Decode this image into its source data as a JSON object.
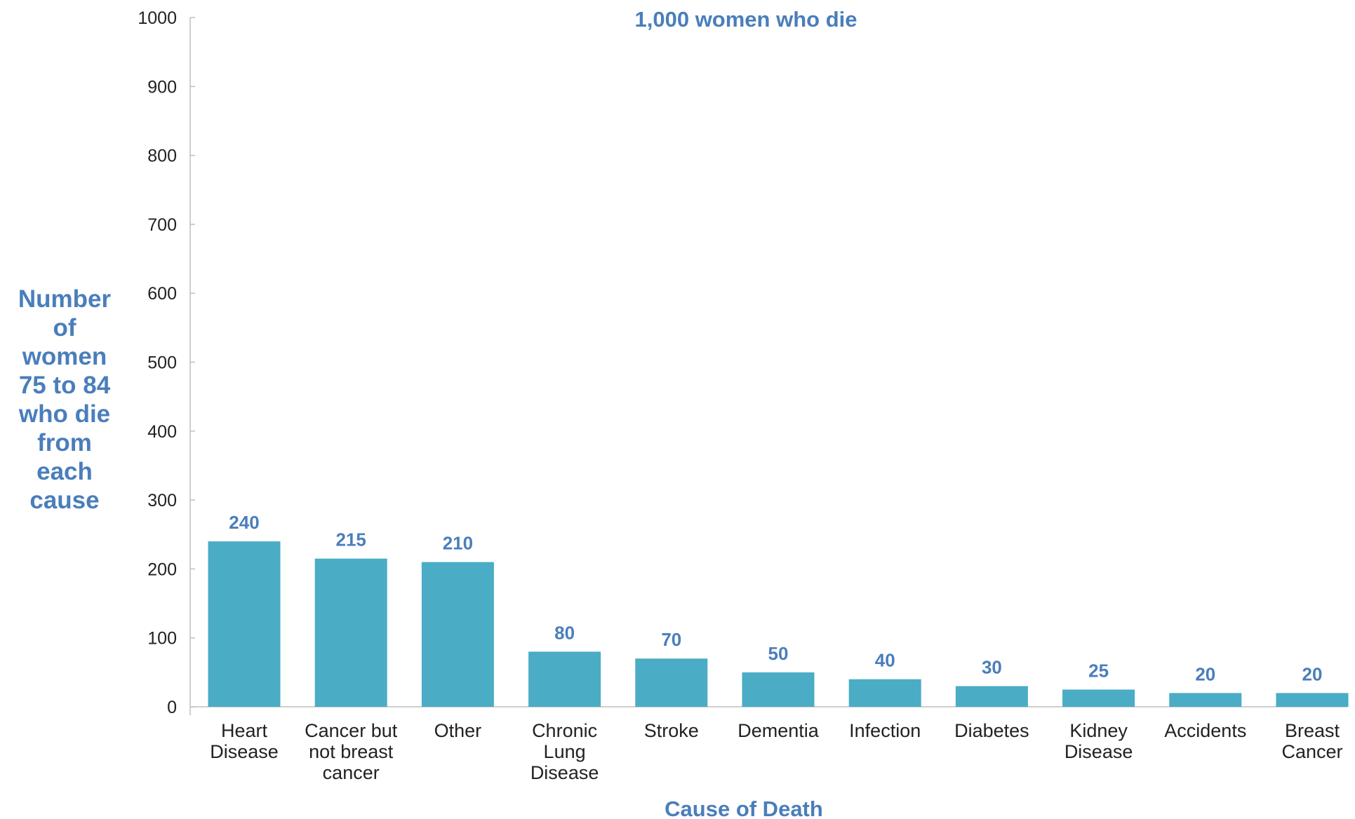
{
  "colors": {
    "bar": "#4aacc5",
    "accent_text": "#4a7ebb",
    "axis": "#bfbfbf",
    "tick_text": "#222222"
  },
  "chart_data": {
    "type": "bar",
    "title": "1,000 women who die",
    "xlabel": "Cause of Death",
    "ylabel": "Number of women 75 to 84 who die from each cause",
    "ylabel_lines": [
      "Number",
      "of",
      "women",
      "75 to 84",
      "who die",
      "from",
      "each",
      "cause"
    ],
    "categories": [
      "Heart Disease",
      "Cancer but not breast cancer",
      "Other",
      "Chronic Lung Disease",
      "Stroke",
      "Dementia",
      "Infection",
      "Diabetes",
      "Kidney Disease",
      "Accidents",
      "Breast Cancer"
    ],
    "category_lines": [
      [
        "Heart",
        "Disease"
      ],
      [
        "Cancer but",
        "not breast",
        "cancer"
      ],
      [
        "Other"
      ],
      [
        "Chronic",
        "Lung",
        "Disease"
      ],
      [
        "Stroke"
      ],
      [
        "Dementia"
      ],
      [
        "Infection"
      ],
      [
        "Diabetes"
      ],
      [
        "Kidney",
        "Disease"
      ],
      [
        "Accidents"
      ],
      [
        "Breast",
        "Cancer"
      ]
    ],
    "values": [
      240,
      215,
      210,
      80,
      70,
      50,
      40,
      30,
      25,
      20,
      20
    ],
    "ylim": [
      0,
      1000
    ],
    "yticks": [
      0,
      100,
      200,
      300,
      400,
      500,
      600,
      700,
      800,
      900,
      1000
    ],
    "grid": false,
    "legend": "none"
  }
}
